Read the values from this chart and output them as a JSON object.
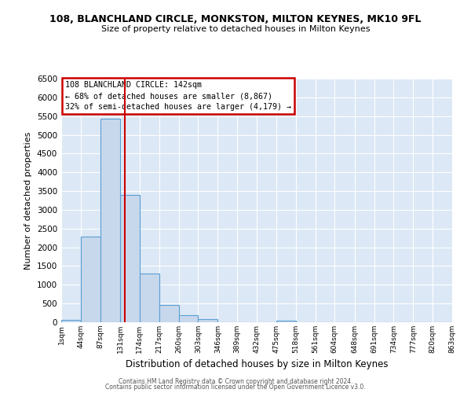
{
  "title": "108, BLANCHLAND CIRCLE, MONKSTON, MILTON KEYNES, MK10 9FL",
  "subtitle": "Size of property relative to detached houses in Milton Keynes",
  "xlabel": "Distribution of detached houses by size in Milton Keynes",
  "ylabel": "Number of detached properties",
  "bar_color": "#c8d8ec",
  "bar_edge_color": "#5a9fd4",
  "background_color": "#ffffff",
  "plot_bg_color": "#dce8f5",
  "grid_color": "#ffffff",
  "annotation_box_color": "#cc0000",
  "vline_color": "#cc0000",
  "vline_x": 142,
  "annotation_line1": "108 BLANCHLAND CIRCLE: 142sqm",
  "annotation_line2": "← 68% of detached houses are smaller (8,867)",
  "annotation_line3": "32% of semi-detached houses are larger (4,179) →",
  "bins": [
    1,
    44,
    87,
    131,
    174,
    217,
    260,
    303,
    346,
    389,
    432,
    475,
    518,
    561,
    604,
    648,
    691,
    734,
    777,
    820,
    863
  ],
  "bin_labels": [
    "1sqm",
    "44sqm",
    "87sqm",
    "131sqm",
    "174sqm",
    "217sqm",
    "260sqm",
    "303sqm",
    "346sqm",
    "389sqm",
    "432sqm",
    "475sqm",
    "518sqm",
    "561sqm",
    "604sqm",
    "648sqm",
    "691sqm",
    "734sqm",
    "777sqm",
    "820sqm",
    "863sqm"
  ],
  "bar_heights": [
    60,
    2280,
    5430,
    3400,
    1310,
    470,
    180,
    80,
    0,
    0,
    0,
    40,
    0,
    0,
    0,
    0,
    0,
    0,
    0,
    0
  ],
  "ylim": [
    0,
    6500
  ],
  "yticks": [
    0,
    500,
    1000,
    1500,
    2000,
    2500,
    3000,
    3500,
    4000,
    4500,
    5000,
    5500,
    6000,
    6500
  ],
  "footer1": "Contains HM Land Registry data © Crown copyright and database right 2024.",
  "footer2": "Contains public sector information licensed under the Open Government Licence v3.0."
}
